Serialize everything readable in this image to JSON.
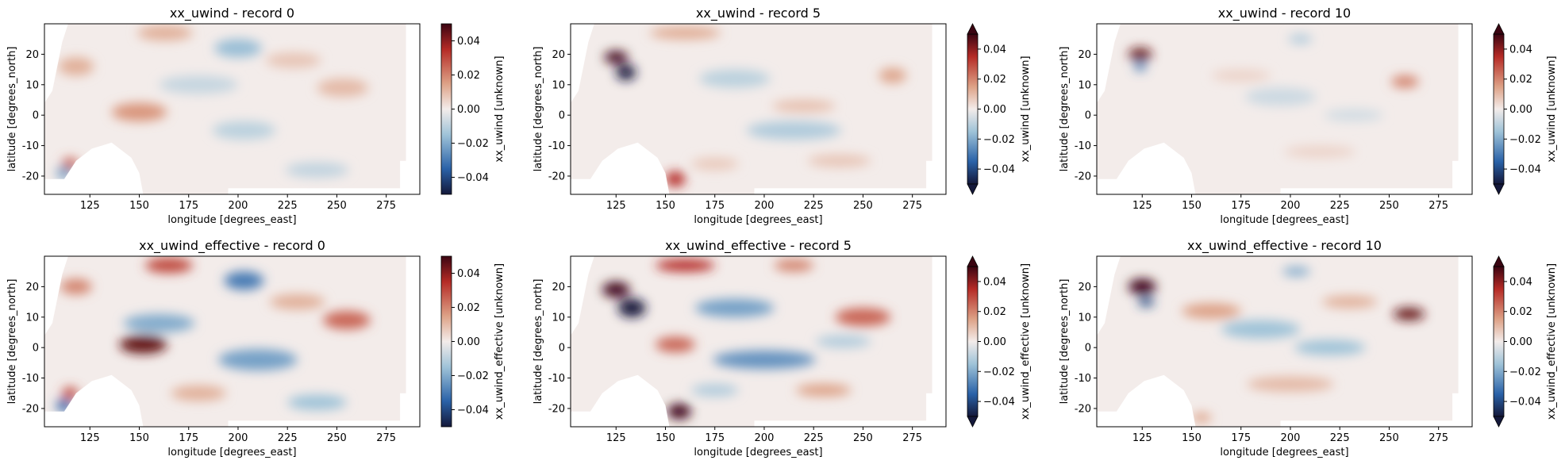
{
  "figure": {
    "colormap": "diverging-blue-white-red",
    "colors": {
      "neg_max": "#14183a",
      "neg": "#2a62a8",
      "neg_mid": "#9fc3d8",
      "zero": "#f3ecea",
      "pos_mid": "#dda186",
      "pos": "#b52b26",
      "pos_max": "#3b0512",
      "land": "#ffffff"
    }
  },
  "chart_data": [
    {
      "type": "heatmap",
      "title": "xx_uwind - record 0",
      "xlabel": "longitude [degrees_east]",
      "ylabel": "latitude [degrees_north]",
      "xlim": [
        102,
        292
      ],
      "ylim": [
        -26,
        30
      ],
      "xticks": [
        125,
        150,
        175,
        200,
        225,
        250,
        275
      ],
      "yticks": [
        20,
        10,
        0,
        -10,
        -20
      ],
      "colorbar": {
        "label": "xx_uwind [unknown]",
        "vmin": -0.05,
        "vmax": 0.05,
        "ticks": [
          0.04,
          0.02,
          0.0,
          -0.02,
          -0.04
        ],
        "tick_labels": [
          "0.04",
          "0.02",
          "0.00",
          "−0.02",
          "−0.04"
        ],
        "extend": "neither"
      },
      "blobs": [
        {
          "lon": 150,
          "lat": 1,
          "value": 0.017,
          "rx": 14,
          "ry": 3
        },
        {
          "lon": 200,
          "lat": 22,
          "value": -0.016,
          "rx": 12,
          "ry": 3
        },
        {
          "lon": 163,
          "lat": 27,
          "value": 0.012,
          "rx": 14,
          "ry": 2.5
        },
        {
          "lon": 118,
          "lat": 16,
          "value": 0.012,
          "rx": 9,
          "ry": 3
        },
        {
          "lon": 115,
          "lat": -16,
          "value": 0.026,
          "rx": 4,
          "ry": 2
        },
        {
          "lon": 112,
          "lat": -19,
          "value": -0.022,
          "rx": 4,
          "ry": 2
        },
        {
          "lon": 203,
          "lat": -5,
          "value": -0.01,
          "rx": 16,
          "ry": 3
        },
        {
          "lon": 253,
          "lat": 9,
          "value": 0.01,
          "rx": 13,
          "ry": 3
        },
        {
          "lon": 180,
          "lat": 10,
          "value": -0.008,
          "rx": 20,
          "ry": 3
        },
        {
          "lon": 240,
          "lat": -18,
          "value": -0.009,
          "rx": 16,
          "ry": 2.5
        },
        {
          "lon": 228,
          "lat": 18,
          "value": 0.008,
          "rx": 14,
          "ry": 2.5
        }
      ]
    },
    {
      "type": "heatmap",
      "title": "xx_uwind - record 5",
      "xlabel": "longitude [degrees_east]",
      "ylabel": "latitude [degrees_north]",
      "xlim": [
        102,
        292
      ],
      "ylim": [
        -26,
        30
      ],
      "xticks": [
        125,
        150,
        175,
        200,
        225,
        250,
        275
      ],
      "yticks": [
        20,
        10,
        0,
        -10,
        -20
      ],
      "colorbar": {
        "label": "xx_uwind [unknown]",
        "vmin": -0.05,
        "vmax": 0.05,
        "ticks": [
          0.04,
          0.02,
          0.0,
          -0.02,
          -0.04
        ],
        "tick_labels": [
          "0.04",
          "0.02",
          "0.00",
          "−0.02",
          "−0.04"
        ],
        "extend": "both"
      },
      "blobs": [
        {
          "lon": 125,
          "lat": 19,
          "value": 0.055,
          "rx": 6,
          "ry": 2
        },
        {
          "lon": 130,
          "lat": 14,
          "value": -0.05,
          "rx": 5,
          "ry": 2.5
        },
        {
          "lon": 155,
          "lat": -21,
          "value": 0.035,
          "rx": 5,
          "ry": 2.5
        },
        {
          "lon": 160,
          "lat": 27,
          "value": 0.013,
          "rx": 18,
          "ry": 2
        },
        {
          "lon": 215,
          "lat": -5,
          "value": -0.012,
          "rx": 24,
          "ry": 3
        },
        {
          "lon": 265,
          "lat": 13,
          "value": 0.014,
          "rx": 7,
          "ry": 2.5
        },
        {
          "lon": 185,
          "lat": 12,
          "value": -0.01,
          "rx": 18,
          "ry": 3
        },
        {
          "lon": 220,
          "lat": 3,
          "value": 0.009,
          "rx": 16,
          "ry": 2
        },
        {
          "lon": 238,
          "lat": -15,
          "value": 0.008,
          "rx": 16,
          "ry": 2
        },
        {
          "lon": 175,
          "lat": -16,
          "value": 0.007,
          "rx": 12,
          "ry": 2
        }
      ]
    },
    {
      "type": "heatmap",
      "title": "xx_uwind - record 10",
      "xlabel": "longitude [degrees_east]",
      "ylabel": "latitude [degrees_north]",
      "xlim": [
        102,
        292
      ],
      "ylim": [
        -26,
        30
      ],
      "xticks": [
        125,
        150,
        175,
        200,
        225,
        250,
        275
      ],
      "yticks": [
        20,
        10,
        0,
        -10,
        -20
      ],
      "colorbar": {
        "label": "xx_uwind [unknown]",
        "vmin": -0.05,
        "vmax": 0.05,
        "ticks": [
          0.04,
          0.02,
          0.0,
          -0.02,
          -0.04
        ],
        "tick_labels": [
          "0.04",
          "0.02",
          "0.00",
          "−0.02",
          "−0.04"
        ],
        "extend": "both"
      },
      "blobs": [
        {
          "lon": 124,
          "lat": 20,
          "value": 0.045,
          "rx": 6,
          "ry": 2
        },
        {
          "lon": 124,
          "lat": 16,
          "value": -0.03,
          "rx": 3,
          "ry": 1.5
        },
        {
          "lon": 258,
          "lat": 11,
          "value": 0.02,
          "rx": 7,
          "ry": 2
        },
        {
          "lon": 205,
          "lat": 25,
          "value": -0.012,
          "rx": 6,
          "ry": 1.5
        },
        {
          "lon": 195,
          "lat": 6,
          "value": -0.007,
          "rx": 18,
          "ry": 3
        },
        {
          "lon": 175,
          "lat": 13,
          "value": 0.005,
          "rx": 15,
          "ry": 2
        },
        {
          "lon": 232,
          "lat": 0,
          "value": -0.006,
          "rx": 15,
          "ry": 2
        },
        {
          "lon": 215,
          "lat": -12,
          "value": 0.005,
          "rx": 18,
          "ry": 2
        }
      ]
    },
    {
      "type": "heatmap",
      "title": "xx_uwind_effective - record 0",
      "xlabel": "longitude [degrees_east]",
      "ylabel": "latitude [degrees_north]",
      "xlim": [
        102,
        292
      ],
      "ylim": [
        -26,
        30
      ],
      "xticks": [
        125,
        150,
        175,
        200,
        225,
        250,
        275
      ],
      "yticks": [
        20,
        10,
        0,
        -10,
        -20
      ],
      "colorbar": {
        "label": "xx_uwind_effective [unknown]",
        "vmin": -0.05,
        "vmax": 0.05,
        "ticks": [
          0.04,
          0.02,
          0.0,
          -0.02,
          -0.04
        ],
        "tick_labels": [
          "0.04",
          "0.02",
          "0.00",
          "−0.02",
          "−0.04"
        ],
        "extend": "neither"
      },
      "blobs": [
        {
          "lon": 152,
          "lat": 1,
          "value": 0.045,
          "rx": 12,
          "ry": 3
        },
        {
          "lon": 165,
          "lat": 27,
          "value": 0.03,
          "rx": 12,
          "ry": 2.5
        },
        {
          "lon": 203,
          "lat": 22,
          "value": -0.03,
          "rx": 10,
          "ry": 3
        },
        {
          "lon": 160,
          "lat": 8,
          "value": -0.02,
          "rx": 18,
          "ry": 3
        },
        {
          "lon": 210,
          "lat": -4,
          "value": -0.022,
          "rx": 20,
          "ry": 3.5
        },
        {
          "lon": 255,
          "lat": 9,
          "value": 0.025,
          "rx": 12,
          "ry": 3
        },
        {
          "lon": 118,
          "lat": 20,
          "value": 0.02,
          "rx": 8,
          "ry": 2.5
        },
        {
          "lon": 115,
          "lat": -15,
          "value": 0.03,
          "rx": 4,
          "ry": 2
        },
        {
          "lon": 112,
          "lat": -19,
          "value": -0.035,
          "rx": 4,
          "ry": 2
        },
        {
          "lon": 240,
          "lat": -18,
          "value": -0.015,
          "rx": 15,
          "ry": 2.5
        },
        {
          "lon": 230,
          "lat": 15,
          "value": 0.012,
          "rx": 14,
          "ry": 2.5
        },
        {
          "lon": 180,
          "lat": -15,
          "value": 0.012,
          "rx": 14,
          "ry": 2.5
        }
      ]
    },
    {
      "type": "heatmap",
      "title": "xx_uwind_effective - record 5",
      "xlabel": "longitude [degrees_east]",
      "ylabel": "latitude [degrees_north]",
      "xlim": [
        102,
        292
      ],
      "ylim": [
        -26,
        30
      ],
      "xticks": [
        125,
        150,
        175,
        200,
        225,
        250,
        275
      ],
      "yticks": [
        20,
        10,
        0,
        -10,
        -20
      ],
      "colorbar": {
        "label": "xx_uwind_effective [unknown]",
        "vmin": -0.05,
        "vmax": 0.05,
        "ticks": [
          0.04,
          0.02,
          0.0,
          -0.02,
          -0.04
        ],
        "tick_labels": [
          "0.04",
          "0.02",
          "0.00",
          "−0.02",
          "−0.04"
        ],
        "extend": "both"
      },
      "blobs": [
        {
          "lon": 125,
          "lat": 19,
          "value": 0.06,
          "rx": 7,
          "ry": 2.5
        },
        {
          "lon": 133,
          "lat": 13,
          "value": -0.06,
          "rx": 7,
          "ry": 3
        },
        {
          "lon": 160,
          "lat": 27,
          "value": 0.035,
          "rx": 15,
          "ry": 2
        },
        {
          "lon": 157,
          "lat": -21,
          "value": 0.05,
          "rx": 6,
          "ry": 2.5
        },
        {
          "lon": 155,
          "lat": 1,
          "value": 0.025,
          "rx": 10,
          "ry": 2.5
        },
        {
          "lon": 200,
          "lat": -4,
          "value": -0.025,
          "rx": 26,
          "ry": 3
        },
        {
          "lon": 250,
          "lat": 10,
          "value": 0.025,
          "rx": 14,
          "ry": 3
        },
        {
          "lon": 185,
          "lat": 13,
          "value": -0.022,
          "rx": 20,
          "ry": 3
        },
        {
          "lon": 215,
          "lat": 27,
          "value": 0.02,
          "rx": 10,
          "ry": 2
        },
        {
          "lon": 230,
          "lat": -14,
          "value": 0.015,
          "rx": 14,
          "ry": 2
        },
        {
          "lon": 175,
          "lat": -14,
          "value": -0.012,
          "rx": 12,
          "ry": 2
        },
        {
          "lon": 240,
          "lat": 2,
          "value": -0.012,
          "rx": 14,
          "ry": 2
        }
      ]
    },
    {
      "type": "heatmap",
      "title": "xx_uwind_effective - record 10",
      "xlabel": "longitude [degrees_east]",
      "ylabel": "latitude [degrees_north]",
      "xlim": [
        102,
        292
      ],
      "ylim": [
        -26,
        30
      ],
      "xticks": [
        125,
        150,
        175,
        200,
        225,
        250,
        275
      ],
      "yticks": [
        20,
        10,
        0,
        -10,
        -20
      ],
      "colorbar": {
        "label": "xx_uwind_effective [unknown]",
        "vmin": -0.05,
        "vmax": 0.05,
        "ticks": [
          0.04,
          0.02,
          0.0,
          -0.02,
          -0.04
        ],
        "tick_labels": [
          "0.04",
          "0.02",
          "0.00",
          "−0.02",
          "−0.04"
        ],
        "extend": "both"
      },
      "blobs": [
        {
          "lon": 125,
          "lat": 20,
          "value": 0.06,
          "rx": 7,
          "ry": 2.5
        },
        {
          "lon": 127,
          "lat": 15,
          "value": -0.04,
          "rx": 4,
          "ry": 1.5
        },
        {
          "lon": 260,
          "lat": 11,
          "value": 0.045,
          "rx": 8,
          "ry": 2
        },
        {
          "lon": 203,
          "lat": 25,
          "value": -0.02,
          "rx": 7,
          "ry": 1.5
        },
        {
          "lon": 185,
          "lat": 6,
          "value": -0.015,
          "rx": 20,
          "ry": 3
        },
        {
          "lon": 160,
          "lat": 12,
          "value": 0.015,
          "rx": 15,
          "ry": 2.5
        },
        {
          "lon": 220,
          "lat": 0,
          "value": -0.015,
          "rx": 18,
          "ry": 2.5
        },
        {
          "lon": 230,
          "lat": 15,
          "value": 0.012,
          "rx": 14,
          "ry": 2
        },
        {
          "lon": 200,
          "lat": -12,
          "value": 0.01,
          "rx": 22,
          "ry": 2.5
        },
        {
          "lon": 155,
          "lat": -23,
          "value": 0.015,
          "rx": 5,
          "ry": 1.5
        }
      ]
    }
  ]
}
